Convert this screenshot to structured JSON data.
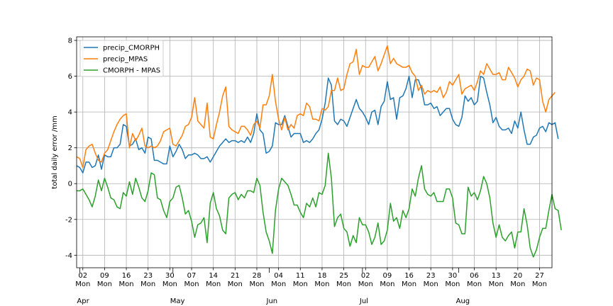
{
  "chart_data": {
    "type": "line",
    "title": "",
    "xlabel": "",
    "ylabel": "total daily error /mm",
    "ylim": [
      -4.7,
      8.2
    ],
    "xlim": [
      "2019-03-31",
      "2019-08-31"
    ],
    "grid": true,
    "legend_position": "top-left",
    "y_ticks": [
      -4,
      -2,
      0,
      2,
      4,
      6,
      8
    ],
    "x_ticks": [
      {
        "date": "2019-04-02",
        "label": "02",
        "sub": "Mon"
      },
      {
        "date": "2019-04-09",
        "label": "09",
        "sub": "Mon"
      },
      {
        "date": "2019-04-16",
        "label": "16",
        "sub": "Mon"
      },
      {
        "date": "2019-04-23",
        "label": "23",
        "sub": "Mon"
      },
      {
        "date": "2019-04-30",
        "label": "30",
        "sub": "Mon"
      },
      {
        "date": "2019-05-07",
        "label": "07",
        "sub": "Mon"
      },
      {
        "date": "2019-05-14",
        "label": "14",
        "sub": "Mon"
      },
      {
        "date": "2019-05-21",
        "label": "21",
        "sub": "Mon"
      },
      {
        "date": "2019-05-28",
        "label": "28",
        "sub": "Mon"
      },
      {
        "date": "2019-06-04",
        "label": "04",
        "sub": "Mon"
      },
      {
        "date": "2019-06-11",
        "label": "11",
        "sub": "Mon"
      },
      {
        "date": "2019-06-18",
        "label": "18",
        "sub": "Mon"
      },
      {
        "date": "2019-06-25",
        "label": "25",
        "sub": "Mon"
      },
      {
        "date": "2019-07-02",
        "label": "02",
        "sub": "Mon"
      },
      {
        "date": "2019-07-09",
        "label": "09",
        "sub": "Mon"
      },
      {
        "date": "2019-07-16",
        "label": "16",
        "sub": "Mon"
      },
      {
        "date": "2019-07-23",
        "label": "23",
        "sub": "Mon"
      },
      {
        "date": "2019-07-30",
        "label": "30",
        "sub": "Mon"
      },
      {
        "date": "2019-08-06",
        "label": "06",
        "sub": "Mon"
      },
      {
        "date": "2019-08-13",
        "label": "13",
        "sub": "Mon"
      },
      {
        "date": "2019-08-20",
        "label": "20",
        "sub": "Mon"
      },
      {
        "date": "2019-08-27",
        "label": "27",
        "sub": "Mon"
      }
    ],
    "months": [
      {
        "date": "2019-04-01",
        "label": "Apr"
      },
      {
        "date": "2019-05-01",
        "label": "May"
      },
      {
        "date": "2019-06-01",
        "label": "Jun"
      },
      {
        "date": "2019-07-01",
        "label": "Jul"
      },
      {
        "date": "2019-08-01",
        "label": "Aug"
      }
    ],
    "x_start": "2019-03-31",
    "x_step_days": 1,
    "series": [
      {
        "name": "precip_CMORPH",
        "color": "#1f77b4",
        "values": [
          1.0,
          0.9,
          0.6,
          1.2,
          1.2,
          0.9,
          1.0,
          1.6,
          0.8,
          1.6,
          1.5,
          1.5,
          2.0,
          2.0,
          2.2,
          3.3,
          3.2,
          2.1,
          2.2,
          2.5,
          1.9,
          2.0,
          1.7,
          2.6,
          2.5,
          1.3,
          1.3,
          1.2,
          1.1,
          1.1,
          2.1,
          1.5,
          1.8,
          2.2,
          1.9,
          1.4,
          1.6,
          1.6,
          1.7,
          1.6,
          1.4,
          1.4,
          1.5,
          1.2,
          1.5,
          1.8,
          2.1,
          2.3,
          2.5,
          2.3,
          2.4,
          2.4,
          2.3,
          2.4,
          2.3,
          2.6,
          2.3,
          2.8,
          3.9,
          3.0,
          2.8,
          1.7,
          1.8,
          2.1,
          3.4,
          3.3,
          3.3,
          3.8,
          3.2,
          2.6,
          2.8,
          2.8,
          2.8,
          2.3,
          2.4,
          2.3,
          2.5,
          2.8,
          3.0,
          3.6,
          4.5,
          5.9,
          5.5,
          3.5,
          3.3,
          3.6,
          3.5,
          3.2,
          3.7,
          4.2,
          4.7,
          4.2,
          4.0,
          3.7,
          3.3,
          4.0,
          4.1,
          3.3,
          4.3,
          4.6,
          5.7,
          4.7,
          4.8,
          3.6,
          4.8,
          4.9,
          5.3,
          6.0,
          4.8,
          5.8,
          5.8,
          5.3,
          4.4,
          4.4,
          4.5,
          4.2,
          4.3,
          3.8,
          4.0,
          4.2,
          4.2,
          3.6,
          3.3,
          3.2,
          3.7,
          4.9,
          4.6,
          4.8,
          4.4,
          4.6,
          6.0,
          5.9,
          5.1,
          4.4,
          3.4,
          3.7,
          3.2,
          3.0,
          3.0,
          3.1,
          2.8,
          3.5,
          3.1,
          4.0,
          3.0,
          2.2,
          2.2,
          2.6,
          2.7,
          3.1,
          3.2,
          2.9,
          3.4,
          3.3,
          3.4,
          2.5
        ]
      },
      {
        "name": "precip_MPAS",
        "color": "#ff7f0e",
        "values": [
          1.5,
          1.4,
          0.9,
          1.9,
          2.1,
          2.2,
          1.7,
          1.3,
          1.2,
          1.7,
          1.9,
          2.4,
          2.9,
          3.3,
          3.6,
          3.8,
          3.9,
          2.0,
          2.8,
          2.4,
          2.7,
          3.1,
          2.1,
          2.0,
          2.1,
          2.0,
          2.1,
          2.4,
          2.9,
          3.0,
          3.1,
          2.2,
          2.1,
          2.4,
          2.7,
          3.2,
          3.3,
          3.7,
          4.8,
          3.5,
          3.3,
          3.1,
          4.5,
          2.6,
          2.5,
          3.3,
          4.0,
          4.9,
          5.4,
          3.2,
          3.0,
          2.9,
          2.8,
          3.2,
          3.2,
          3.0,
          2.7,
          3.3,
          3.5,
          3.1,
          4.4,
          4.4,
          4.9,
          6.1,
          4.6,
          3.6,
          3.0,
          3.7,
          3.0,
          3.3,
          3.1,
          3.8,
          3.9,
          3.8,
          4.5,
          4.3,
          3.6,
          3.6,
          3.5,
          4.2,
          4.1,
          4.3,
          5.2,
          5.2,
          5.9,
          5.2,
          5.3,
          6.1,
          6.7,
          6.8,
          7.5,
          6.1,
          6.6,
          6.5,
          6.5,
          6.8,
          7.1,
          6.3,
          6.7,
          7.2,
          7.7,
          6.7,
          7.0,
          6.7,
          6.6,
          6.5,
          6.5,
          6.6,
          6.2,
          6.0,
          5.2,
          5.5,
          5.0,
          5.2,
          5.1,
          5.2,
          5.1,
          5.4,
          4.8,
          5.1,
          5.7,
          5.5,
          5.8,
          6.1,
          5.0,
          5.3,
          5.4,
          5.5,
          5.2,
          5.7,
          6.3,
          6.1,
          6.7,
          6.4,
          6.1,
          6.1,
          6.2,
          5.8,
          5.8,
          6.5,
          6.2,
          5.9,
          5.4,
          5.8,
          6.0,
          6.4,
          6.3,
          5.5,
          5.9,
          5.8,
          4.6,
          4.0,
          4.7,
          4.9,
          5.1
        ]
      },
      {
        "name": "CMORPH - MPAS",
        "color": "#2ca02c",
        "values": [
          -0.4,
          -0.4,
          -0.3,
          -0.6,
          -0.9,
          -1.3,
          -0.7,
          0.2,
          -0.4,
          0.3,
          -0.2,
          -0.8,
          -0.9,
          -1.3,
          -1.4,
          -0.5,
          -0.7,
          0.1,
          -0.6,
          0.3,
          -0.2,
          -0.8,
          -1.0,
          -0.4,
          0.6,
          0.5,
          -0.8,
          -0.9,
          -1.5,
          -1.9,
          -1.0,
          -0.8,
          -0.2,
          -0.1,
          -0.8,
          -1.7,
          -1.5,
          -2.1,
          -3.0,
          -2.3,
          -2.2,
          -1.9,
          -3.3,
          -1.1,
          -0.5,
          -1.4,
          -1.8,
          -2.6,
          -2.8,
          -0.8,
          -0.6,
          -0.5,
          -0.9,
          -0.6,
          -0.8,
          -0.4,
          -0.4,
          -0.5,
          0.3,
          -0.1,
          -1.6,
          -2.7,
          -3.2,
          -3.9,
          -1.5,
          -0.3,
          0.3,
          0.1,
          -0.1,
          -0.6,
          -1.2,
          -1.2,
          -1.6,
          -1.9,
          -1.1,
          -1.3,
          -0.8,
          -1.3,
          -0.5,
          -0.6,
          -0.1,
          1.7,
          0.3,
          -2.4,
          -1.9,
          -1.7,
          -2.5,
          -2.7,
          -3.5,
          -2.9,
          -3.3,
          -1.9,
          -2.3,
          -2.3,
          -2.7,
          -3.4,
          -3.0,
          -2.2,
          -3.4,
          -3.2,
          -2.6,
          -1.1,
          -2.1,
          -1.9,
          -2.5,
          -1.5,
          -1.9,
          -1.4,
          -0.3,
          -0.7,
          0.3,
          1.0,
          -0.3,
          -0.6,
          -0.7,
          -0.5,
          -1.0,
          -1.0,
          -1.0,
          -0.3,
          -0.3,
          -0.8,
          -2.2,
          -2.3,
          -2.8,
          -2.8,
          -0.2,
          -0.7,
          -0.5,
          -0.9,
          -0.4,
          0.4,
          0.0,
          -0.8,
          -2.2,
          -3.0,
          -2.3,
          -3.0,
          -3.2,
          -2.9,
          -2.7,
          -3.6,
          -2.7,
          -2.7,
          -1.4,
          -2.3,
          -3.6,
          -4.1,
          -3.7,
          -3.0,
          -2.5,
          -2.5,
          -1.5,
          -0.6,
          -1.4,
          -1.5,
          -2.6
        ]
      }
    ]
  }
}
